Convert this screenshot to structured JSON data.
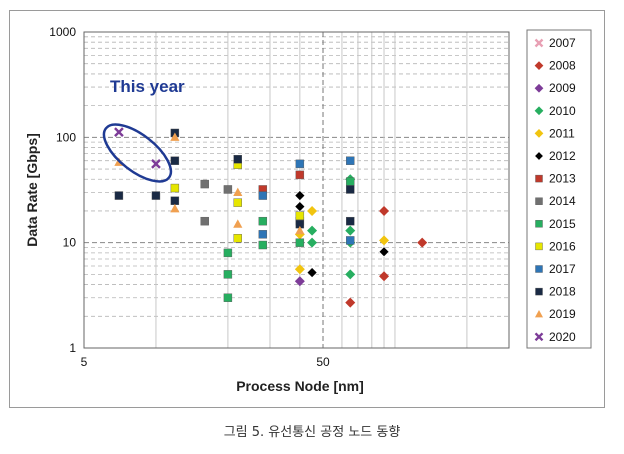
{
  "caption": "그림 5. 유선통신 공정 노드 동향",
  "chart_data": {
    "type": "scatter",
    "title": "",
    "xlabel": "Process Node [nm]",
    "ylabel": "Data Rate [Gbps]",
    "x_scale": "log",
    "y_scale": "log",
    "xlim": [
      5,
      300
    ],
    "ylim": [
      1,
      1000
    ],
    "x_ticks": [
      5,
      50
    ],
    "y_ticks": [
      1,
      10,
      100,
      1000
    ],
    "grid": true,
    "legend_position": "right",
    "annotation": {
      "text": "This year",
      "target_series": "2020"
    },
    "series": [
      {
        "name": "2007",
        "color": "#e8a0b4",
        "marker": "x",
        "points": []
      },
      {
        "name": "2008",
        "color": "#c0392b",
        "marker": "diamond",
        "points": [
          [
            65,
            2.7
          ],
          [
            90,
            4.8
          ],
          [
            90,
            20
          ],
          [
            130,
            10
          ]
        ]
      },
      {
        "name": "2009",
        "color": "#7d3c98",
        "marker": "diamond",
        "points": [
          [
            40,
            4.3
          ]
        ]
      },
      {
        "name": "2010",
        "color": "#27ae60",
        "marker": "diamond",
        "points": [
          [
            45,
            10
          ],
          [
            45,
            13
          ],
          [
            65,
            5
          ],
          [
            65,
            10
          ],
          [
            65,
            13
          ],
          [
            65,
            40
          ]
        ]
      },
      {
        "name": "2011",
        "color": "#f1c40f",
        "marker": "diamond",
        "points": [
          [
            40,
            5.6
          ],
          [
            40,
            12
          ],
          [
            45,
            20
          ],
          [
            90,
            10.5
          ]
        ]
      },
      {
        "name": "2012",
        "color": "#000000",
        "marker": "diamond",
        "points": [
          [
            40,
            28
          ],
          [
            40,
            22
          ],
          [
            45,
            5.2
          ],
          [
            90,
            8.2
          ]
        ]
      },
      {
        "name": "2013",
        "color": "#c0392b",
        "marker": "square",
        "points": [
          [
            28,
            32
          ],
          [
            40,
            44
          ]
        ]
      },
      {
        "name": "2014",
        "color": "#707070",
        "marker": "square",
        "points": [
          [
            16,
            16
          ],
          [
            20,
            32
          ],
          [
            16,
            36
          ],
          [
            40,
            16
          ]
        ]
      },
      {
        "name": "2015",
        "color": "#27ae60",
        "marker": "square",
        "points": [
          [
            20,
            3
          ],
          [
            20,
            5
          ],
          [
            20,
            8
          ],
          [
            28,
            9.5
          ],
          [
            28,
            16
          ],
          [
            40,
            10
          ],
          [
            65,
            38
          ]
        ]
      },
      {
        "name": "2016",
        "color": "#e6e600",
        "marker": "square",
        "points": [
          [
            12,
            33
          ],
          [
            22,
            55
          ],
          [
            22,
            24
          ],
          [
            22,
            11
          ],
          [
            40,
            18
          ]
        ]
      },
      {
        "name": "2017",
        "color": "#2e75b6",
        "marker": "square",
        "points": [
          [
            28,
            28
          ],
          [
            28,
            12
          ],
          [
            40,
            56
          ],
          [
            65,
            60
          ],
          [
            65,
            10.5
          ]
        ]
      },
      {
        "name": "2018",
        "color": "#1a2a44",
        "marker": "square",
        "points": [
          [
            7,
            28
          ],
          [
            10,
            28
          ],
          [
            12,
            110
          ],
          [
            12,
            60
          ],
          [
            12,
            25
          ],
          [
            22,
            62
          ],
          [
            40,
            15
          ],
          [
            65,
            32
          ],
          [
            65,
            16
          ]
        ]
      },
      {
        "name": "2019",
        "color": "#f0a050",
        "marker": "triangle",
        "points": [
          [
            7,
            58
          ],
          [
            12,
            100
          ],
          [
            12,
            21
          ],
          [
            22,
            30
          ],
          [
            22,
            15
          ],
          [
            40,
            13
          ]
        ]
      },
      {
        "name": "2020",
        "color": "#7d3c98",
        "marker": "x",
        "points": [
          [
            7,
            112
          ],
          [
            10,
            56
          ]
        ]
      }
    ]
  }
}
